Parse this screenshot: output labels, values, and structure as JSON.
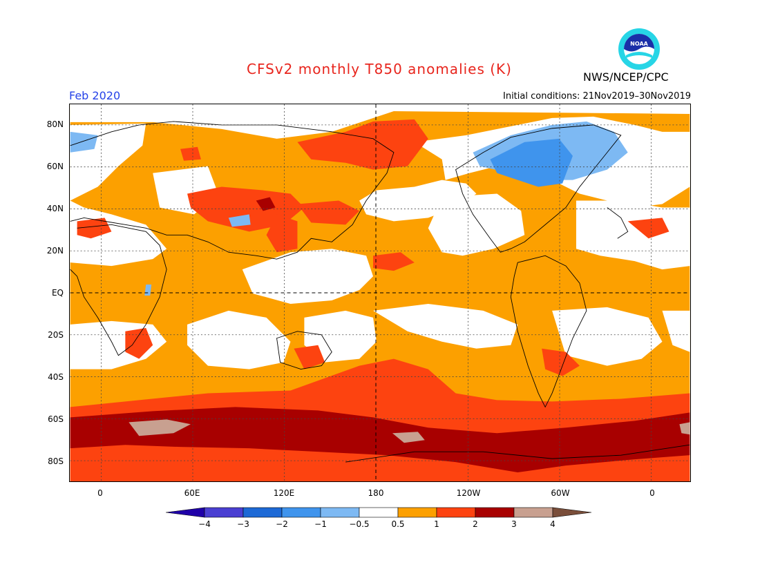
{
  "header": {
    "title": "CFSv2 monthly T850 anomalies (K)",
    "agency": "NWS/NCEP/CPC",
    "month": "Feb 2020",
    "initial_conditions": "Initial conditions: 21Nov2019–30Nov2019"
  },
  "logo": {
    "text": "NOAA",
    "icon": "noaa-logo-icon"
  },
  "map": {
    "projection": "cylindrical-equidistant",
    "lat_labels": [
      "80N",
      "60N",
      "40N",
      "20N",
      "EQ",
      "20S",
      "40S",
      "60S",
      "80S"
    ],
    "lon_labels": [
      "0",
      "60E",
      "120E",
      "180",
      "120W",
      "60W",
      "0"
    ],
    "grid": "dotted",
    "reference_lines": [
      "EQ",
      "180"
    ]
  },
  "colorbar": {
    "units": "K",
    "tick_labels": [
      "−4",
      "−3",
      "−2",
      "−1",
      "−0.5",
      "0.5",
      "1",
      "2",
      "3",
      "4"
    ],
    "colors": [
      "#1f00a8",
      "#4a3fd2",
      "#1d69d6",
      "#3f94ed",
      "#7db9f3",
      "#ffffff",
      "#fca000",
      "#fd4310",
      "#a80000",
      "#c8a090",
      "#7a4e3a"
    ]
  },
  "colors": {
    "title": "#e8251d",
    "month": "#2542e8",
    "neutral": "#ffffff",
    "warm_1": "#fca000",
    "warm_2": "#fd4310",
    "warm_3": "#a80000",
    "warm_4": "#c8a090",
    "cool_1": "#7db9f3",
    "cool_2": "#3f94ed"
  }
}
